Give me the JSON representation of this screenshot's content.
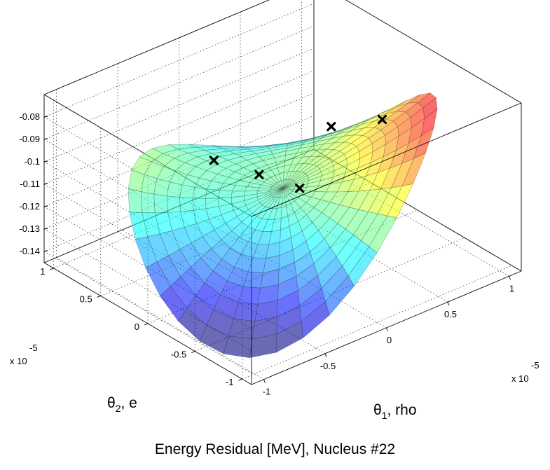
{
  "caption": "Energy Residual [MeV], Nucleus #22",
  "chart_data": {
    "type": "surface",
    "surface_model": "saddle",
    "colormap": "jet",
    "surface_alpha": 0.58,
    "box": true,
    "grid": true,
    "x": {
      "sym": "θ",
      "sub": "1",
      "rest": ", rho",
      "range": [
        -1.1,
        1.1
      ],
      "ticks": [
        -1,
        -0.5,
        0,
        0.5,
        1
      ],
      "tick_labels": [
        "-1",
        "-0.5",
        "0",
        "0.5",
        "1"
      ],
      "exponent": "x 10",
      "exponent_power": "-5"
    },
    "y": {
      "sym": "θ",
      "sub": "2",
      "rest": ", e",
      "range": [
        -1.1,
        1.1
      ],
      "ticks": [
        -1,
        -0.5,
        0,
        0.5,
        1
      ],
      "tick_labels": [
        "-1",
        "-0.5",
        "0",
        "0.5",
        "1"
      ],
      "exponent": "x 10",
      "exponent_power": "-5"
    },
    "z": {
      "range": [
        -0.145,
        -0.07
      ],
      "ticks": [
        -0.14,
        -0.13,
        -0.12,
        -0.11,
        -0.1,
        -0.09,
        -0.08
      ],
      "tick_labels": [
        "-0.14",
        "-0.13",
        "-0.12",
        "-0.11",
        "-0.1",
        "-0.09",
        "-0.08"
      ]
    },
    "markers": {
      "symbol": "x",
      "color": "#000000",
      "points": [
        {
          "x": -0.1,
          "y": 0.6,
          "z": -0.11
        },
        {
          "x": 0.0,
          "y": 0.25,
          "z": -0.11
        },
        {
          "x": 0.1,
          "y": -0.05,
          "z": -0.111
        },
        {
          "x": 0.55,
          "y": 0.2,
          "z": -0.1
        },
        {
          "x": 0.85,
          "y": 0.05,
          "z": -0.1
        }
      ]
    }
  }
}
